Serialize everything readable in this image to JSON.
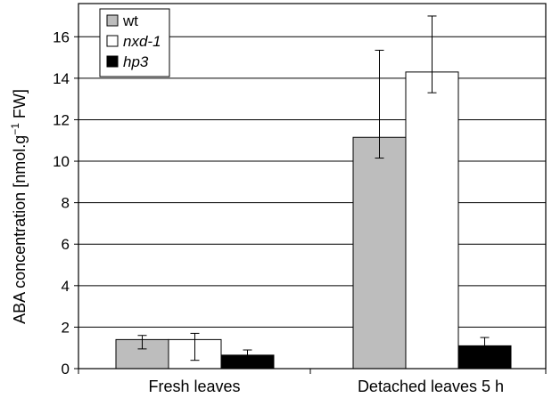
{
  "chart_data": {
    "type": "bar",
    "categories": [
      "Fresh leaves",
      "Detached leaves 5 h"
    ],
    "series": [
      {
        "name": "wt",
        "italic": false,
        "color": "#bdbdbd",
        "values": [
          1.4,
          11.15
        ],
        "errors": [
          0.2,
          1.0
        ]
      },
      {
        "name": "nxd-1",
        "italic": true,
        "color": "#ffffff",
        "values": [
          1.4,
          14.3
        ],
        "errors": [
          0.3,
          1.0
        ]
      },
      {
        "name": "hp3",
        "italic": true,
        "color": "#000000",
        "values": [
          0.65,
          1.1
        ],
        "errors": [
          0.25,
          0.4
        ]
      }
    ],
    "error_bars_asymmetric": {
      "wt": [
        [
          0.95,
          1.6
        ],
        [
          10.15,
          15.35
        ]
      ],
      "nxd-1": [
        [
          0.4,
          1.7
        ],
        [
          13.3,
          17.0
        ]
      ],
      "hp3": [
        [
          0.4,
          0.9
        ],
        [
          0.8,
          1.5
        ]
      ]
    },
    "ylabel_main": "ABA concentration [nmol.g",
    "ylabel_sup": "−1",
    "ylabel_end": " FW]",
    "xlabel": "",
    "title": "",
    "ylim": [
      0,
      17.6
    ],
    "yticks": [
      0,
      2,
      4,
      6,
      8,
      10,
      12,
      14,
      16
    ],
    "grid": true,
    "legend_position": "top-left"
  }
}
